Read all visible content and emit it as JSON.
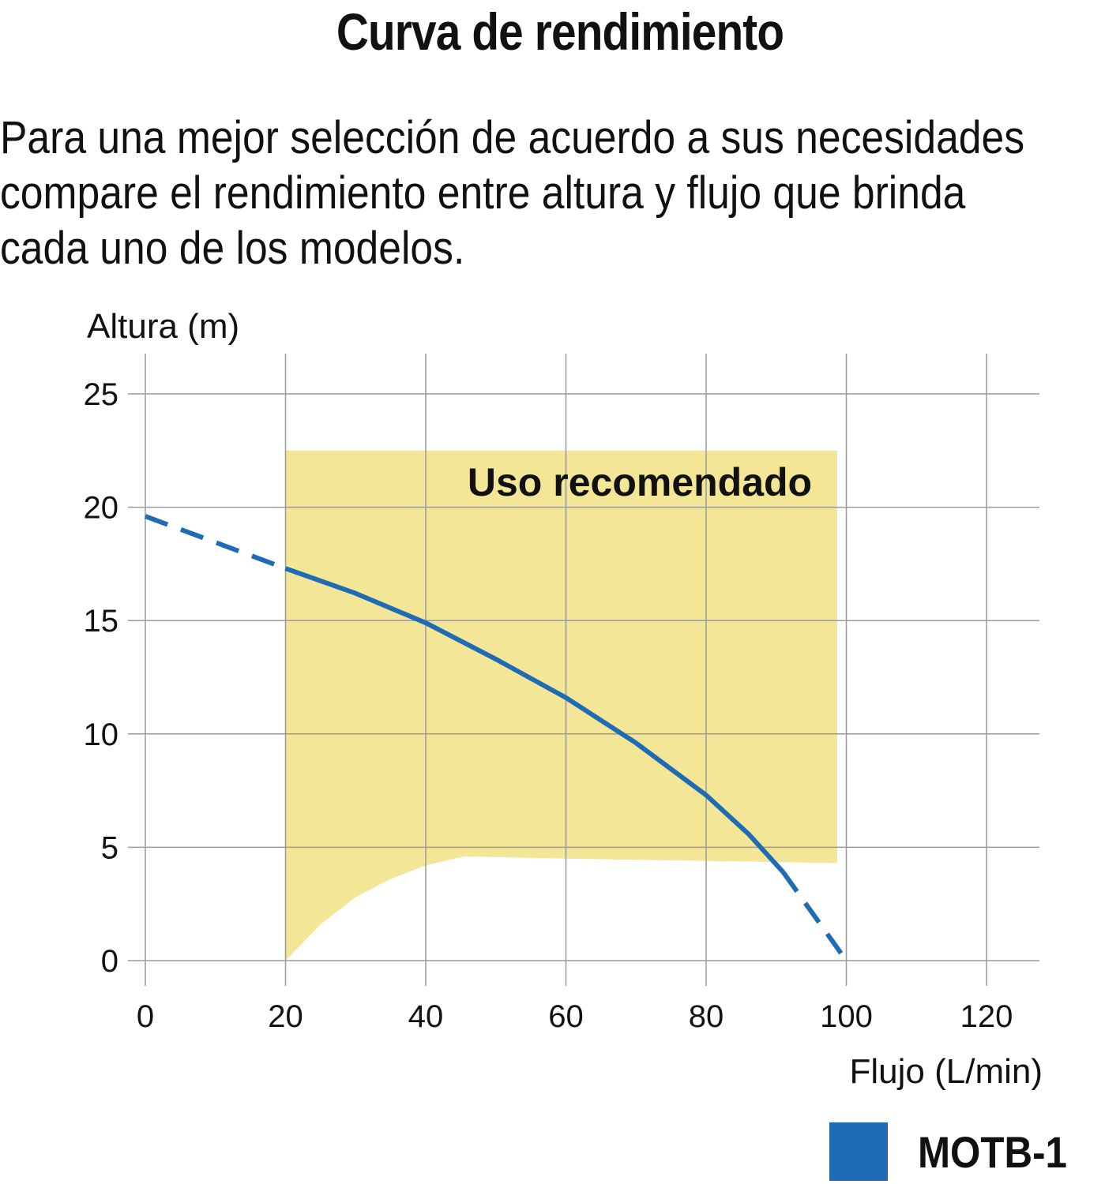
{
  "title": "Curva de rendimiento",
  "description_lines": [
    "Para una mejor selección de acuerdo a sus necesidades",
    "compare el rendimiento entre altura y flujo que brinda",
    "cada uno de los modelos."
  ],
  "colors": {
    "series": "#1f6bb5",
    "zone": "#f3e697",
    "grid": "#9a9a9a"
  },
  "chart_data": {
    "type": "line",
    "ylabel": "Altura (m)",
    "xlabel": "Flujo (L/min)",
    "xlim": [
      0,
      127
    ],
    "ylim": [
      0,
      26
    ],
    "x_ticks": [
      0,
      20,
      40,
      60,
      80,
      100,
      120
    ],
    "y_ticks": [
      0,
      5,
      10,
      15,
      20,
      25
    ],
    "grid": true,
    "legend_position": "bottom-right",
    "series": [
      {
        "name": "MOTB-1",
        "color": "#1f6bb5",
        "solid": {
          "x": [
            20,
            30,
            40,
            50,
            60,
            70,
            80,
            86,
            91
          ],
          "y": [
            17.3,
            16.2,
            14.9,
            13.3,
            11.6,
            9.6,
            7.3,
            5.6,
            3.9
          ]
        },
        "dashed_segments": [
          {
            "x": [
              0,
              20
            ],
            "y": [
              19.6,
              17.3
            ]
          },
          {
            "x": [
              91,
              100
            ],
            "y": [
              3.9,
              0
            ]
          }
        ]
      }
    ],
    "annotations": [
      {
        "text": "Uso recomendado",
        "region": {
          "x_range": [
            20,
            98.7
          ],
          "top_y": 22.5,
          "right_bottom_y": 4.3,
          "lower_boundary": {
            "x": [
              20,
              25,
              30,
              35,
              40,
              45.5,
              60,
              80,
              98.7
            ],
            "y": [
              0,
              1.6,
              2.8,
              3.6,
              4.2,
              4.6,
              4.5,
              4.4,
              4.3
            ]
          }
        }
      }
    ]
  }
}
